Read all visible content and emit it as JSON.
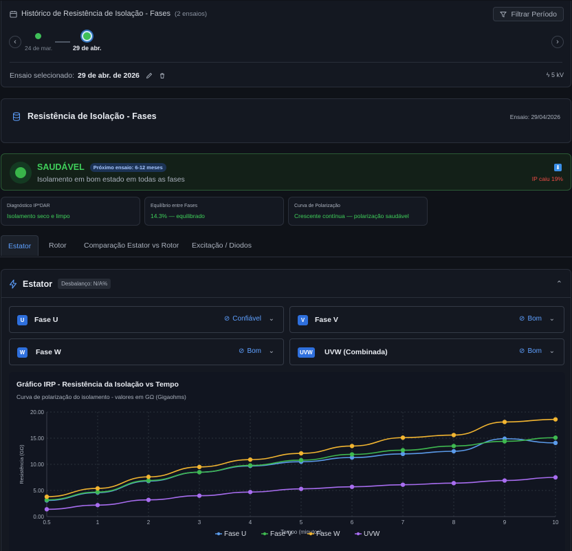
{
  "history": {
    "title": "Histórico de Resistência de Isolação - Fases",
    "count": "(2 ensaios)",
    "filter_label": "Filtrar Período",
    "timeline": [
      {
        "label": "24 de mar."
      },
      {
        "label": "29 de abr."
      }
    ],
    "selected_prefix": "Ensaio selecionado:",
    "selected_date": "29 de abr. de 2026",
    "voltage": "5 kV"
  },
  "resistance": {
    "title": "Resistência de Isolação - Fases",
    "date": "Ensaio: 29/04/2026"
  },
  "status": {
    "title": "SAUDÁVEL",
    "next_test": "Próximo ensaio: 6-12 meses",
    "description": "Isolamento em bom estado em todas as fases",
    "ip_alert": "IP caiu 19%",
    "colors": {
      "healthy": "#3fcf5a",
      "alert": "#ef4b45"
    }
  },
  "diagnostics": [
    {
      "label": "Diagnóstico IP*DAR",
      "value": "Isolamento seco e limpo"
    },
    {
      "label": "Equilíbrio entre Fases",
      "value": "14.3% — equilibrado"
    },
    {
      "label": "Curva de Polarização",
      "value": "Crescente contínua — polarização saudável"
    }
  ],
  "tabs": [
    "Estator",
    "Rotor",
    "Comparação Estator vs Rotor",
    "Excitação / Diodos"
  ],
  "stator": {
    "title": "Estator",
    "unbalance": "Desbalanço: N/A%",
    "phases": [
      {
        "badge": "U",
        "name": "Fase U",
        "state": "Confiável"
      },
      {
        "badge": "V",
        "name": "Fase V",
        "state": "Bom"
      },
      {
        "badge": "W",
        "name": "Fase W",
        "state": "Bom"
      },
      {
        "badge": "UVW",
        "name": "UVW (Combinada)",
        "state": "Bom"
      }
    ]
  },
  "chart": {
    "title": "Gráfico IRP - Resistência da Isolação vs Tempo",
    "subtitle": "Curva de polarização do isolamento - valores em GΩ (Gigaohms)"
  },
  "chart_data": {
    "type": "line",
    "x": [
      0.5,
      1,
      2,
      3,
      4,
      5,
      6,
      7,
      8,
      9,
      10
    ],
    "xlabel": "Tempo (minutos)",
    "ylabel": "Resistência (GΩ)",
    "ylim": [
      0,
      20
    ],
    "xticks": [
      "0.5",
      "1",
      "2",
      "3",
      "4",
      "5",
      "6",
      "7",
      "8",
      "9",
      "10"
    ],
    "yticks": [
      "0.00",
      "5.00",
      "10.00",
      "15.00",
      "20.00"
    ],
    "grid": true,
    "legend": "bottom",
    "series": [
      {
        "name": "Fase U",
        "color": "#5b9bea",
        "values": [
          3.1,
          4.6,
          6.8,
          8.5,
          9.7,
          10.5,
          11.3,
          12.0,
          12.5,
          14.9,
          14.1
        ]
      },
      {
        "name": "Fase V",
        "color": "#3fb950",
        "values": [
          3.2,
          4.7,
          6.9,
          8.5,
          9.8,
          10.8,
          11.9,
          12.7,
          13.5,
          14.4,
          15.1
        ]
      },
      {
        "name": "Fase W",
        "color": "#f2b531",
        "values": [
          3.8,
          5.4,
          7.6,
          9.5,
          10.9,
          12.1,
          13.5,
          15.1,
          15.6,
          18.1,
          18.6
        ]
      },
      {
        "name": "UVW",
        "color": "#a86df0",
        "values": [
          1.4,
          2.2,
          3.2,
          4.0,
          4.7,
          5.3,
          5.7,
          6.1,
          6.4,
          6.9,
          7.5
        ]
      }
    ]
  }
}
